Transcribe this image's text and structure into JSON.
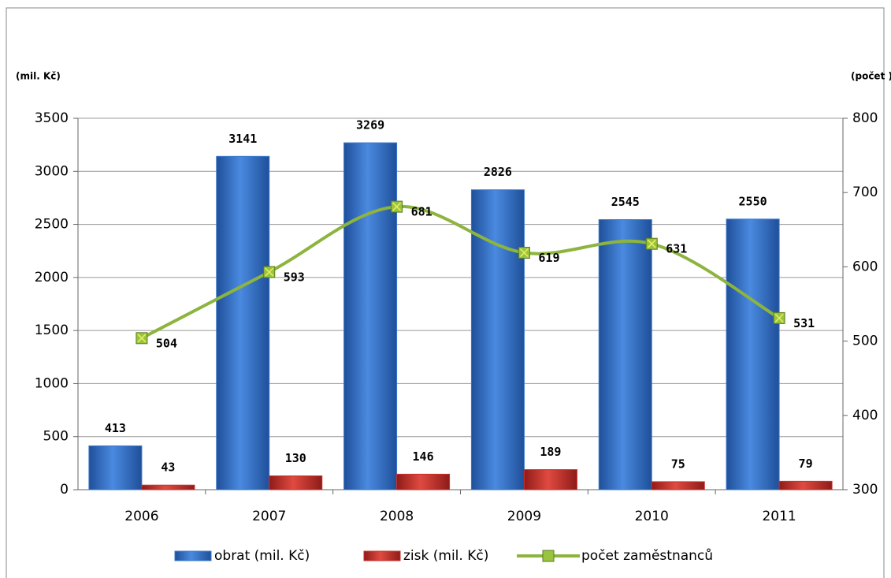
{
  "chart_data": {
    "type": "bar_line",
    "y_label": "(mil. Kč)",
    "y2_label": "(počet )",
    "categories": [
      "2006",
      "2007",
      "2008",
      "2009",
      "2010",
      "2011"
    ],
    "series": [
      {
        "name": "obrat (mil. Kč)",
        "color": "#3b78cc",
        "values": [
          413,
          3141,
          3269,
          2826,
          2545,
          2550
        ]
      },
      {
        "name": "zisk (mil. Kč)",
        "color": "#c8302c",
        "values": [
          43,
          130,
          146,
          189,
          75,
          79
        ]
      },
      {
        "name": "počet zaměstnanců",
        "color": "#8db43e",
        "axis": "y2",
        "values": [
          504,
          593,
          681,
          619,
          631,
          531
        ]
      }
    ],
    "ylim": [
      0,
      3500
    ],
    "yticks": [
      0,
      500,
      1000,
      1500,
      2000,
      2500,
      3000,
      3500
    ],
    "y2lim": [
      300,
      800
    ],
    "y2ticks": [
      300,
      400,
      500,
      600,
      700,
      800
    ],
    "grid": true,
    "legend": "bottom"
  }
}
